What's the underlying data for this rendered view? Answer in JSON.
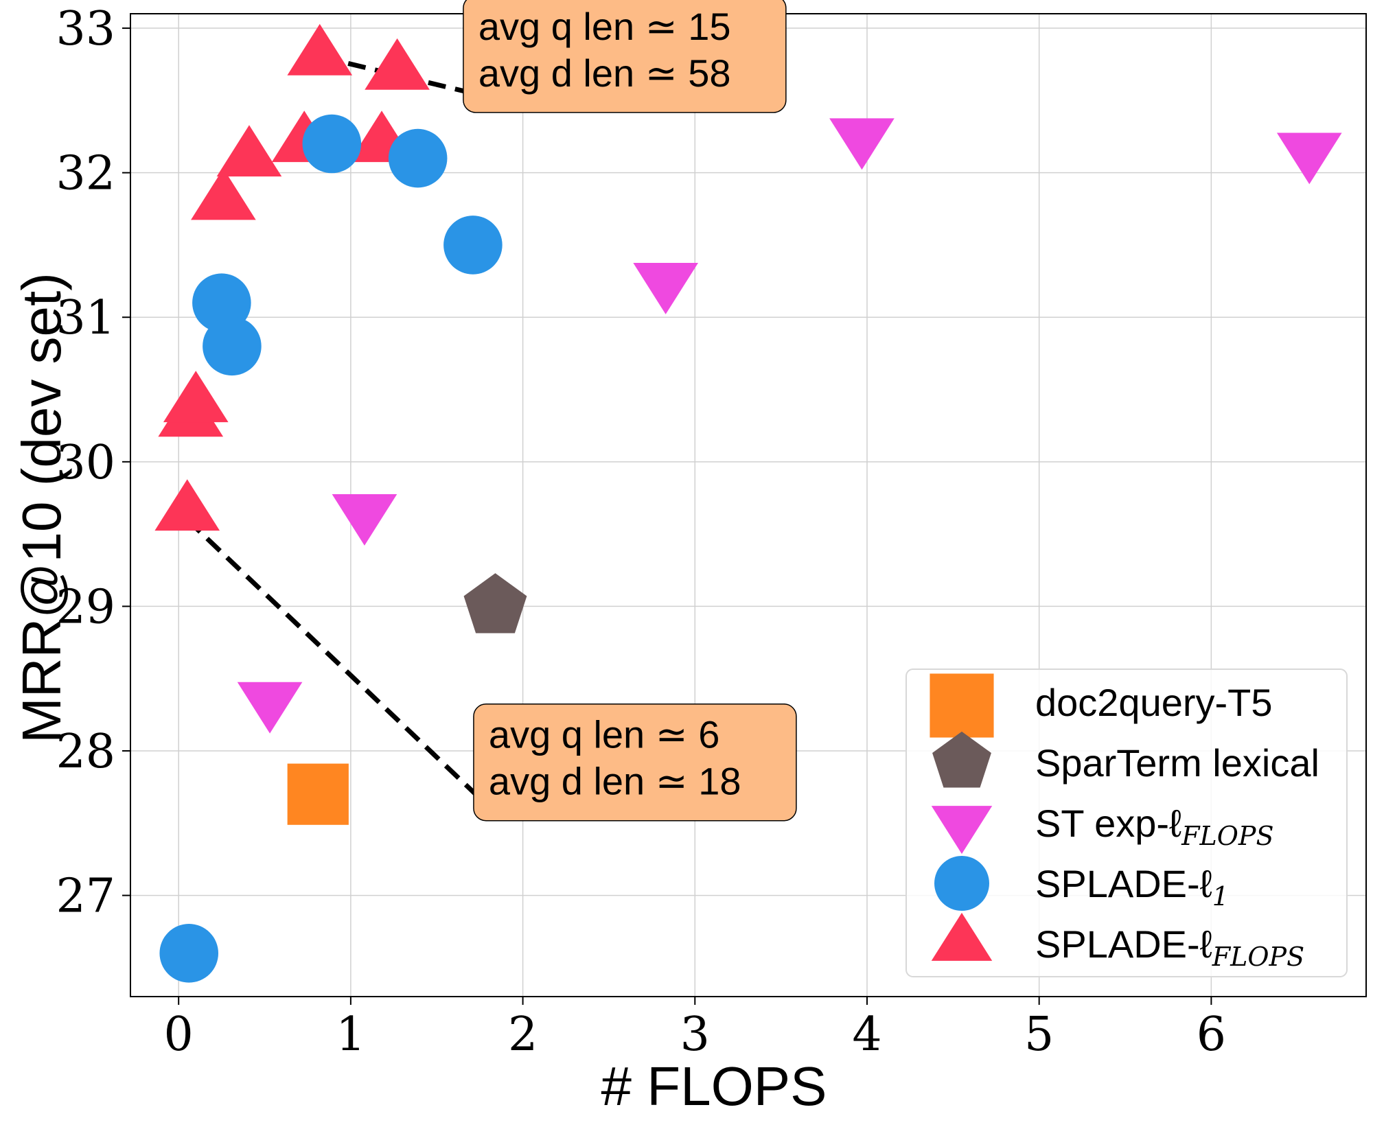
{
  "chart_data": {
    "type": "scatter",
    "xlabel": "# FLOPS",
    "ylabel": "MRR@10 (dev set)",
    "xlim": [
      -0.28,
      6.9
    ],
    "ylim": [
      26.3,
      33.1
    ],
    "xticks": [
      0,
      1,
      2,
      3,
      4,
      5,
      6
    ],
    "yticks": [
      27,
      28,
      29,
      30,
      31,
      32,
      33
    ],
    "grid": true,
    "legend_position": "bottom-right",
    "series": [
      {
        "name": "doc2query-T5",
        "legend_parts": [
          "doc2query-T5"
        ],
        "marker": "square",
        "color": "#ff8621",
        "points": [
          {
            "x": 0.81,
            "y": 27.7
          }
        ]
      },
      {
        "name": "SparTerm lexical",
        "legend_parts": [
          "SparTerm lexical"
        ],
        "marker": "pentagon",
        "color": "#6b5a5a",
        "points": [
          {
            "x": 1.84,
            "y": 29.0
          }
        ]
      },
      {
        "name": "ST exp-ℓFLOPS",
        "legend_parts": [
          "ST exp-ℓ",
          "FLOPS"
        ],
        "marker": "triangle-down",
        "color": "#ef49e0",
        "points": [
          {
            "x": 0.53,
            "y": 28.35
          },
          {
            "x": 1.08,
            "y": 29.65
          },
          {
            "x": 2.83,
            "y": 31.25
          },
          {
            "x": 3.97,
            "y": 32.25
          },
          {
            "x": 6.57,
            "y": 32.15
          }
        ]
      },
      {
        "name": "SPLADE-ℓ1",
        "legend_parts": [
          "SPLADE-ℓ",
          "1"
        ],
        "marker": "circle",
        "color": "#2a94e6",
        "points": [
          {
            "x": 0.06,
            "y": 26.6
          },
          {
            "x": 0.25,
            "y": 31.1
          },
          {
            "x": 0.31,
            "y": 30.8
          },
          {
            "x": 0.89,
            "y": 32.2
          },
          {
            "x": 1.39,
            "y": 32.1
          },
          {
            "x": 1.71,
            "y": 31.5
          }
        ]
      },
      {
        "name": "SPLADE-ℓFLOPS",
        "legend_parts": [
          "SPLADE-ℓ",
          "FLOPS"
        ],
        "marker": "triangle-up",
        "color": "#fd3557",
        "points": [
          {
            "x": 0.05,
            "y": 29.65
          },
          {
            "x": 0.07,
            "y": 30.3
          },
          {
            "x": 0.1,
            "y": 30.4
          },
          {
            "x": 0.26,
            "y": 31.8
          },
          {
            "x": 0.41,
            "y": 32.1
          },
          {
            "x": 0.73,
            "y": 32.2
          },
          {
            "x": 0.82,
            "y": 32.8
          },
          {
            "x": 1.18,
            "y": 32.2
          },
          {
            "x": 1.27,
            "y": 32.7
          }
        ]
      }
    ],
    "annotations": [
      {
        "lines": [
          "avg q len ≃ 15",
          "avg d len ≃ 58"
        ],
        "point": {
          "x": 0.83,
          "y": 32.8
        },
        "text_anchor": {
          "x": 1.71,
          "y": 32.55
        },
        "box_color": "#fdbb86"
      },
      {
        "lines": [
          "avg q len ≃ 6",
          "avg d len ≃ 18"
        ],
        "point": {
          "x": 0.05,
          "y": 29.6
        },
        "text_anchor": {
          "x": 1.77,
          "y": 27.65
        },
        "box_color": "#fdbb86"
      }
    ]
  }
}
